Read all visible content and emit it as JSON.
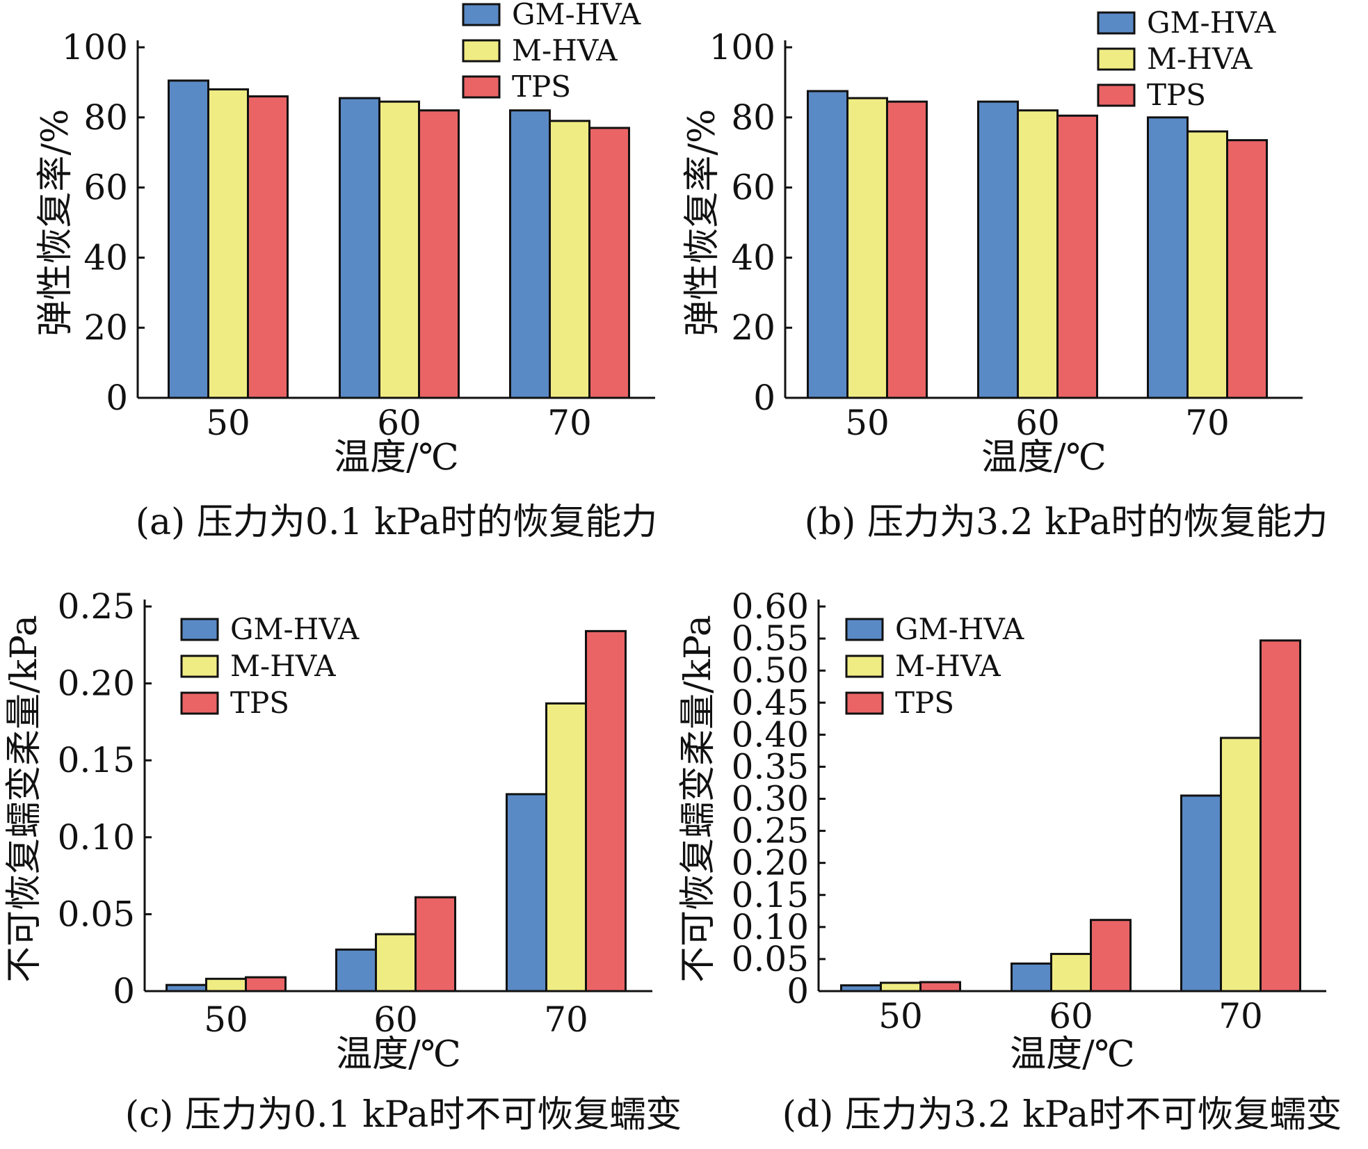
{
  "colors": {
    "GM-HVA": "#5a8ac6",
    "M-HVA": "#f0ec84",
    "TPS": "#ea6466"
  },
  "legend": [
    "GM-HVA",
    "M-HVA",
    "TPS"
  ],
  "chart_data": [
    {
      "type": "bar",
      "id": "a",
      "caption": "(a) 压力为0.1 kPa时的恢复能力",
      "xlabel": "温度/℃",
      "ylabel": "弹性恢复率/%",
      "categories": [
        "50",
        "60",
        "70"
      ],
      "ylim": [
        0,
        100
      ],
      "yticks": [
        "0",
        "20",
        "40",
        "60",
        "80",
        "100"
      ],
      "legend_position": "top-right",
      "series": [
        {
          "name": "GM-HVA",
          "values": [
            90.5,
            85.5,
            82.0
          ]
        },
        {
          "name": "M-HVA",
          "values": [
            88.0,
            84.5,
            79.0
          ]
        },
        {
          "name": "TPS",
          "values": [
            86.0,
            82.0,
            77.0
          ]
        }
      ]
    },
    {
      "type": "bar",
      "id": "b",
      "caption": "(b) 压力为3.2 kPa时的恢复能力",
      "xlabel": "温度/℃",
      "ylabel": "弹性恢复率/%",
      "categories": [
        "50",
        "60",
        "70"
      ],
      "ylim": [
        0,
        100
      ],
      "yticks": [
        "0",
        "20",
        "40",
        "60",
        "80",
        "100"
      ],
      "legend_position": "top-right",
      "series": [
        {
          "name": "GM-HVA",
          "values": [
            87.5,
            84.5,
            80.0
          ]
        },
        {
          "name": "M-HVA",
          "values": [
            85.5,
            82.0,
            76.0
          ]
        },
        {
          "name": "TPS",
          "values": [
            84.5,
            80.5,
            73.5
          ]
        }
      ]
    },
    {
      "type": "bar",
      "id": "c",
      "caption": "(c) 压力为0.1 kPa时不可恢复蠕变",
      "xlabel": "温度/℃",
      "ylabel": "不可恢复蠕变柔量/kPa",
      "categories": [
        "50",
        "60",
        "70"
      ],
      "ylim": [
        0,
        0.25
      ],
      "yticks": [
        "0",
        "0.05",
        "0.10",
        "0.15",
        "0.20",
        "0.25"
      ],
      "legend_position": "top-left",
      "series": [
        {
          "name": "GM-HVA",
          "values": [
            0.004,
            0.027,
            0.128
          ]
        },
        {
          "name": "M-HVA",
          "values": [
            0.008,
            0.037,
            0.187
          ]
        },
        {
          "name": "TPS",
          "values": [
            0.009,
            0.061,
            0.234
          ]
        }
      ]
    },
    {
      "type": "bar",
      "id": "d",
      "caption": "(d) 压力为3.2 kPa时不可恢复蠕变",
      "xlabel": "温度/℃",
      "ylabel": "不可恢复蠕变柔量/kPa",
      "categories": [
        "50",
        "60",
        "70"
      ],
      "ylim": [
        0,
        0.6
      ],
      "yticks": [
        "0",
        "0.05",
        "0.10",
        "0.15",
        "0.20",
        "0.25",
        "0.30",
        "0.35",
        "0.40",
        "0.45",
        "0.50",
        "0.55",
        "0.60"
      ],
      "legend_position": "top-left",
      "series": [
        {
          "name": "GM-HVA",
          "values": [
            0.009,
            0.043,
            0.305
          ]
        },
        {
          "name": "M-HVA",
          "values": [
            0.013,
            0.058,
            0.395
          ]
        },
        {
          "name": "TPS",
          "values": [
            0.014,
            0.111,
            0.547
          ]
        }
      ]
    }
  ]
}
